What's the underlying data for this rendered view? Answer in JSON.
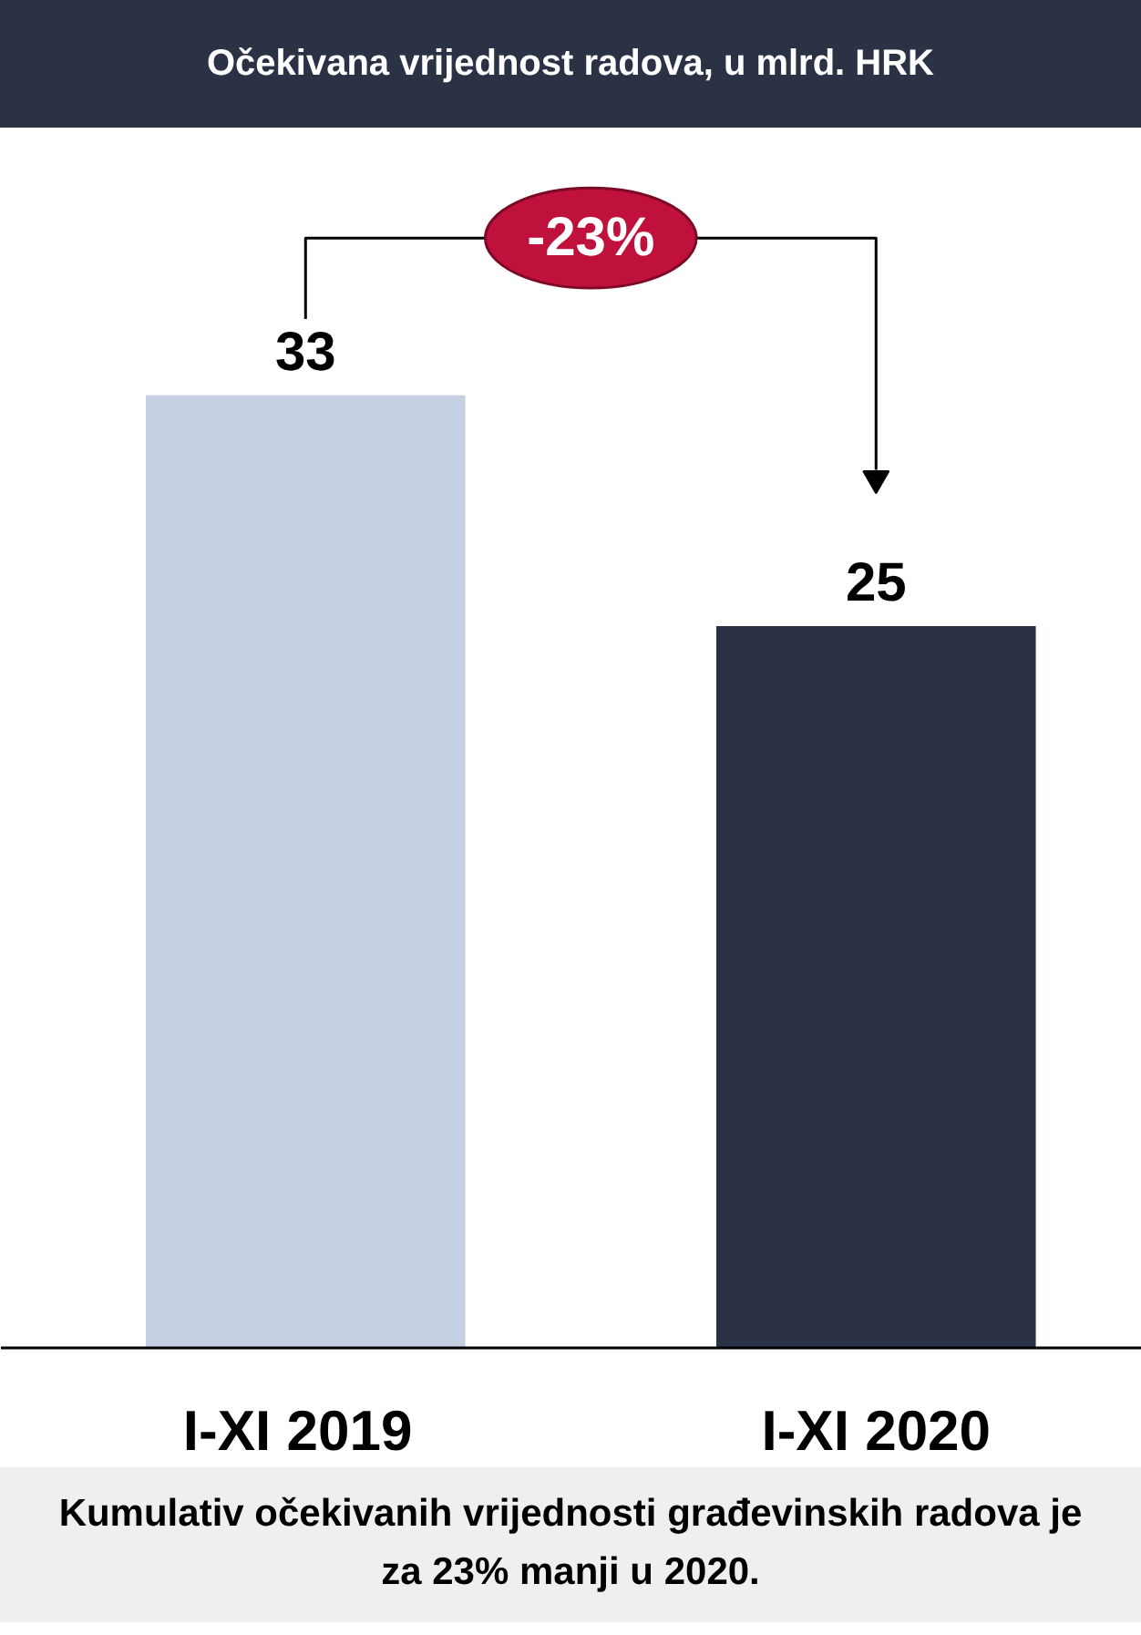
{
  "chart_data": {
    "type": "bar",
    "title": "Očekivana vrijednost radova, u mlrd. HRK",
    "categories": [
      "I-XI  2019",
      "I-XI 2020"
    ],
    "values": [
      33,
      25
    ],
    "colors": [
      "#c5cfe2",
      "#2b3245"
    ],
    "data_labels": true,
    "annotations": [
      "-23%",
      "Kumulativ očekivanih vrijednosti građevinskih radova je za 23% manji u 2020."
    ]
  }
}
